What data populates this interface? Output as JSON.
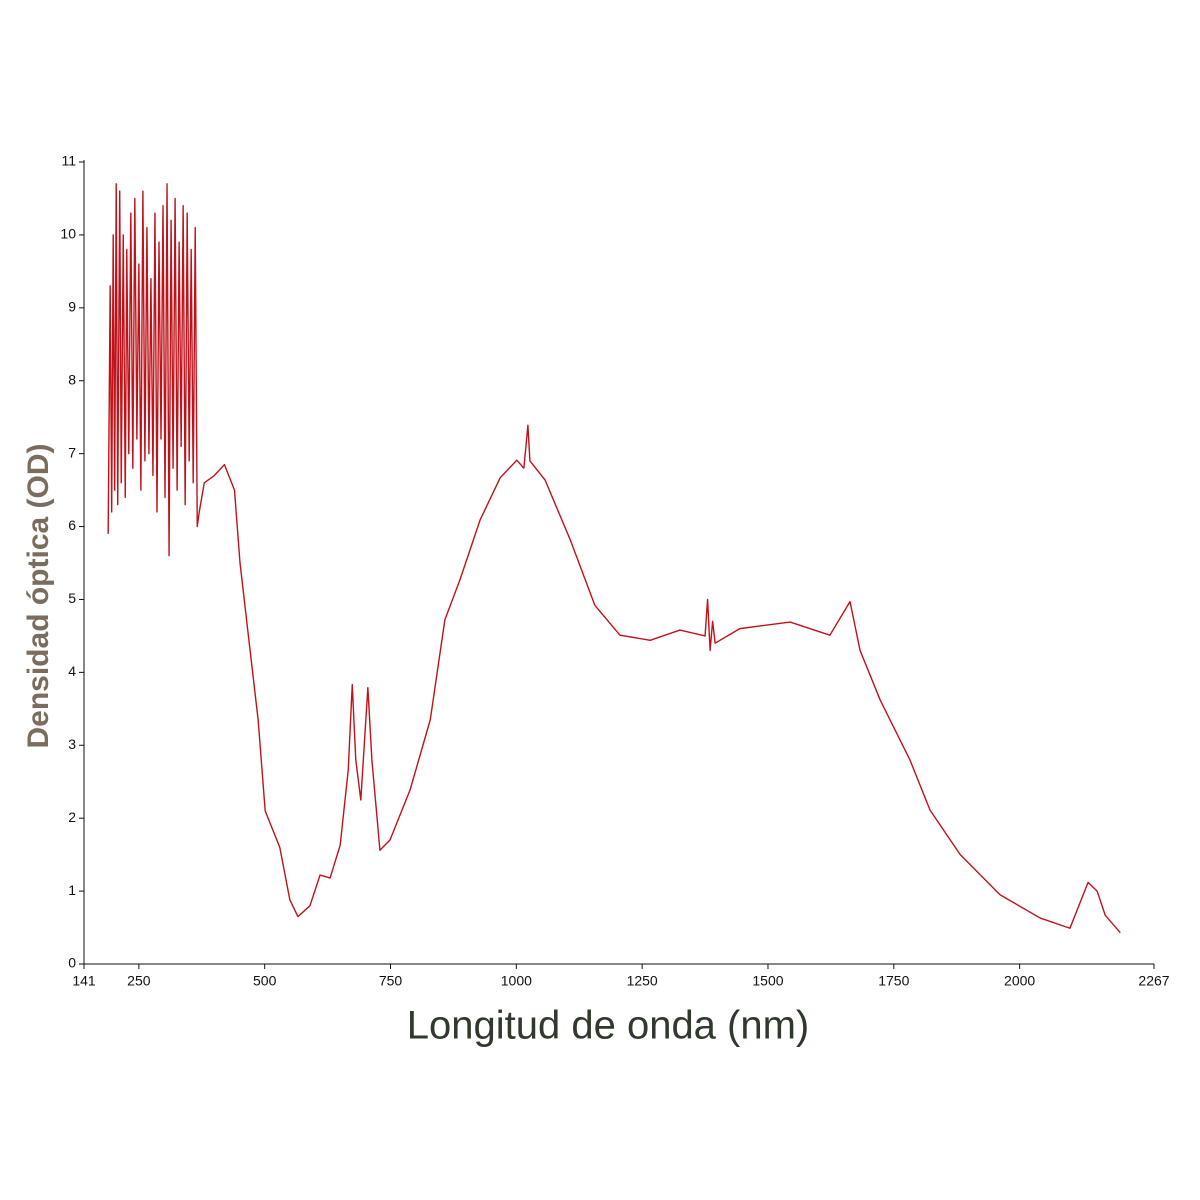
{
  "chart_data": {
    "type": "line",
    "xlabel": "Longitud de onda (nm)",
    "ylabel": "Densidad óptica (OD)",
    "x": [
      189,
      193,
      196,
      199,
      202,
      205,
      208,
      212,
      215,
      219,
      223,
      226,
      230,
      234,
      238,
      242,
      246,
      250,
      254,
      258,
      262,
      266,
      270,
      274,
      278,
      282,
      286,
      290,
      294,
      298,
      302,
      306,
      310,
      314,
      318,
      322,
      326,
      330,
      334,
      338,
      342,
      346,
      350,
      354,
      358,
      362,
      366,
      370,
      380,
      400,
      420,
      440,
      451,
      471,
      487,
      501,
      530,
      550,
      566,
      590,
      610,
      630,
      650,
      666,
      674,
      681,
      691,
      705,
      713,
      729,
      749,
      789,
      829,
      858,
      888,
      928,
      968,
      1001,
      1015,
      1023,
      1027,
      1057,
      1107,
      1156,
      1206,
      1266,
      1325,
      1375,
      1380,
      1385,
      1390,
      1395,
      1444,
      1544,
      1623,
      1663,
      1683,
      1723,
      1782,
      1822,
      1882,
      1961,
      2041,
      2100,
      2136,
      2154,
      2170,
      2200
    ],
    "values": [
      5.9,
      9.3,
      6.2,
      10.0,
      6.5,
      10.7,
      6.3,
      10.6,
      6.6,
      10.0,
      6.4,
      9.8,
      7.0,
      10.3,
      6.8,
      10.5,
      7.2,
      9.6,
      6.5,
      10.6,
      6.9,
      10.1,
      7.0,
      9.4,
      6.7,
      10.3,
      6.2,
      9.9,
      7.2,
      10.4,
      6.4,
      10.7,
      5.6,
      10.2,
      6.8,
      10.5,
      6.5,
      9.9,
      7.1,
      10.4,
      6.3,
      10.3,
      6.9,
      9.8,
      6.6,
      10.1,
      6.0,
      6.2,
      6.6,
      6.7,
      6.85,
      6.5,
      5.5,
      4.3,
      3.35,
      2.1,
      1.6,
      0.88,
      0.65,
      0.8,
      1.22,
      1.18,
      1.63,
      2.66,
      3.83,
      2.8,
      2.25,
      3.79,
      2.8,
      1.56,
      1.7,
      2.39,
      3.35,
      4.72,
      5.27,
      6.09,
      6.67,
      6.91,
      6.8,
      7.39,
      6.9,
      6.64,
      5.82,
      4.92,
      4.51,
      4.44,
      4.58,
      4.5,
      5.0,
      4.3,
      4.7,
      4.4,
      4.6,
      4.69,
      4.51,
      4.97,
      4.3,
      3.62,
      2.8,
      2.11,
      1.5,
      0.95,
      0.63,
      0.49,
      1.12,
      1.0,
      0.67,
      0.43
    ],
    "color": "#c0121a",
    "xlim": [
      141,
      2267
    ],
    "xticks": [
      141,
      250,
      500,
      750,
      1000,
      1250,
      1500,
      1750,
      2000,
      2267
    ],
    "ylim": [
      0,
      11
    ],
    "yticks": [
      0,
      1,
      2,
      3,
      4,
      5,
      6,
      7,
      8,
      9,
      10,
      11
    ],
    "grid": false
  }
}
